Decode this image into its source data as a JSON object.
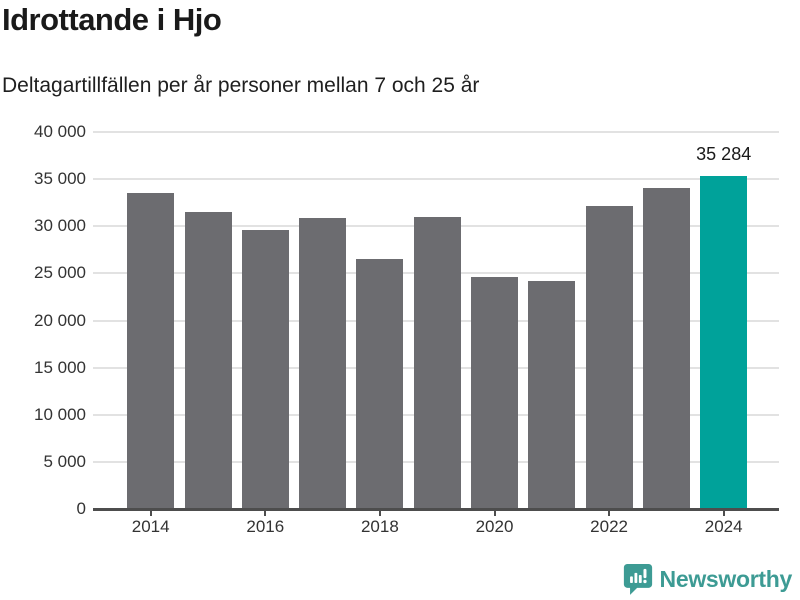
{
  "header": {
    "title": "Idrottande i Hjo",
    "subtitle": "Deltagartillfällen per år personer mellan 7 och 25 år"
  },
  "chart_data": {
    "type": "bar",
    "title": "Idrottande i Hjo",
    "subtitle": "Deltagartillfällen per år personer mellan 7 och 25 år",
    "categories": [
      "2014",
      "2015",
      "2016",
      "2017",
      "2018",
      "2019",
      "2020",
      "2021",
      "2022",
      "2023",
      "2024"
    ],
    "values": [
      33500,
      31500,
      29600,
      30900,
      26500,
      31000,
      24600,
      24200,
      32200,
      34100,
      35284
    ],
    "highlight_index": 10,
    "highlight_value_label": "35 284",
    "ylim": [
      0,
      40000
    ],
    "yticks": [
      0,
      5000,
      10000,
      15000,
      20000,
      25000,
      30000,
      35000,
      40000
    ],
    "ytick_labels": [
      "0",
      "5 000",
      "10 000",
      "15 000",
      "20 000",
      "25 000",
      "30 000",
      "35 000",
      "40 000"
    ],
    "xtick_indices": [
      0,
      2,
      4,
      6,
      8,
      10
    ],
    "xtick_labels": [
      "2014",
      "2016",
      "2018",
      "2020",
      "2022",
      "2024"
    ],
    "grid": true,
    "legend": "none",
    "colors": {
      "bar": "#6C6C70",
      "highlight": "#00A29A",
      "gridline": "#E2E2E2",
      "axis": "#4D4D4D",
      "label_text": "#1A1A1A",
      "tick_text": "#333333"
    }
  },
  "footer": {
    "brand": "Newsworthy",
    "brand_color": "#3D9B94",
    "logo_icon": "newsworthy-speech-bubble-chart-icon"
  }
}
